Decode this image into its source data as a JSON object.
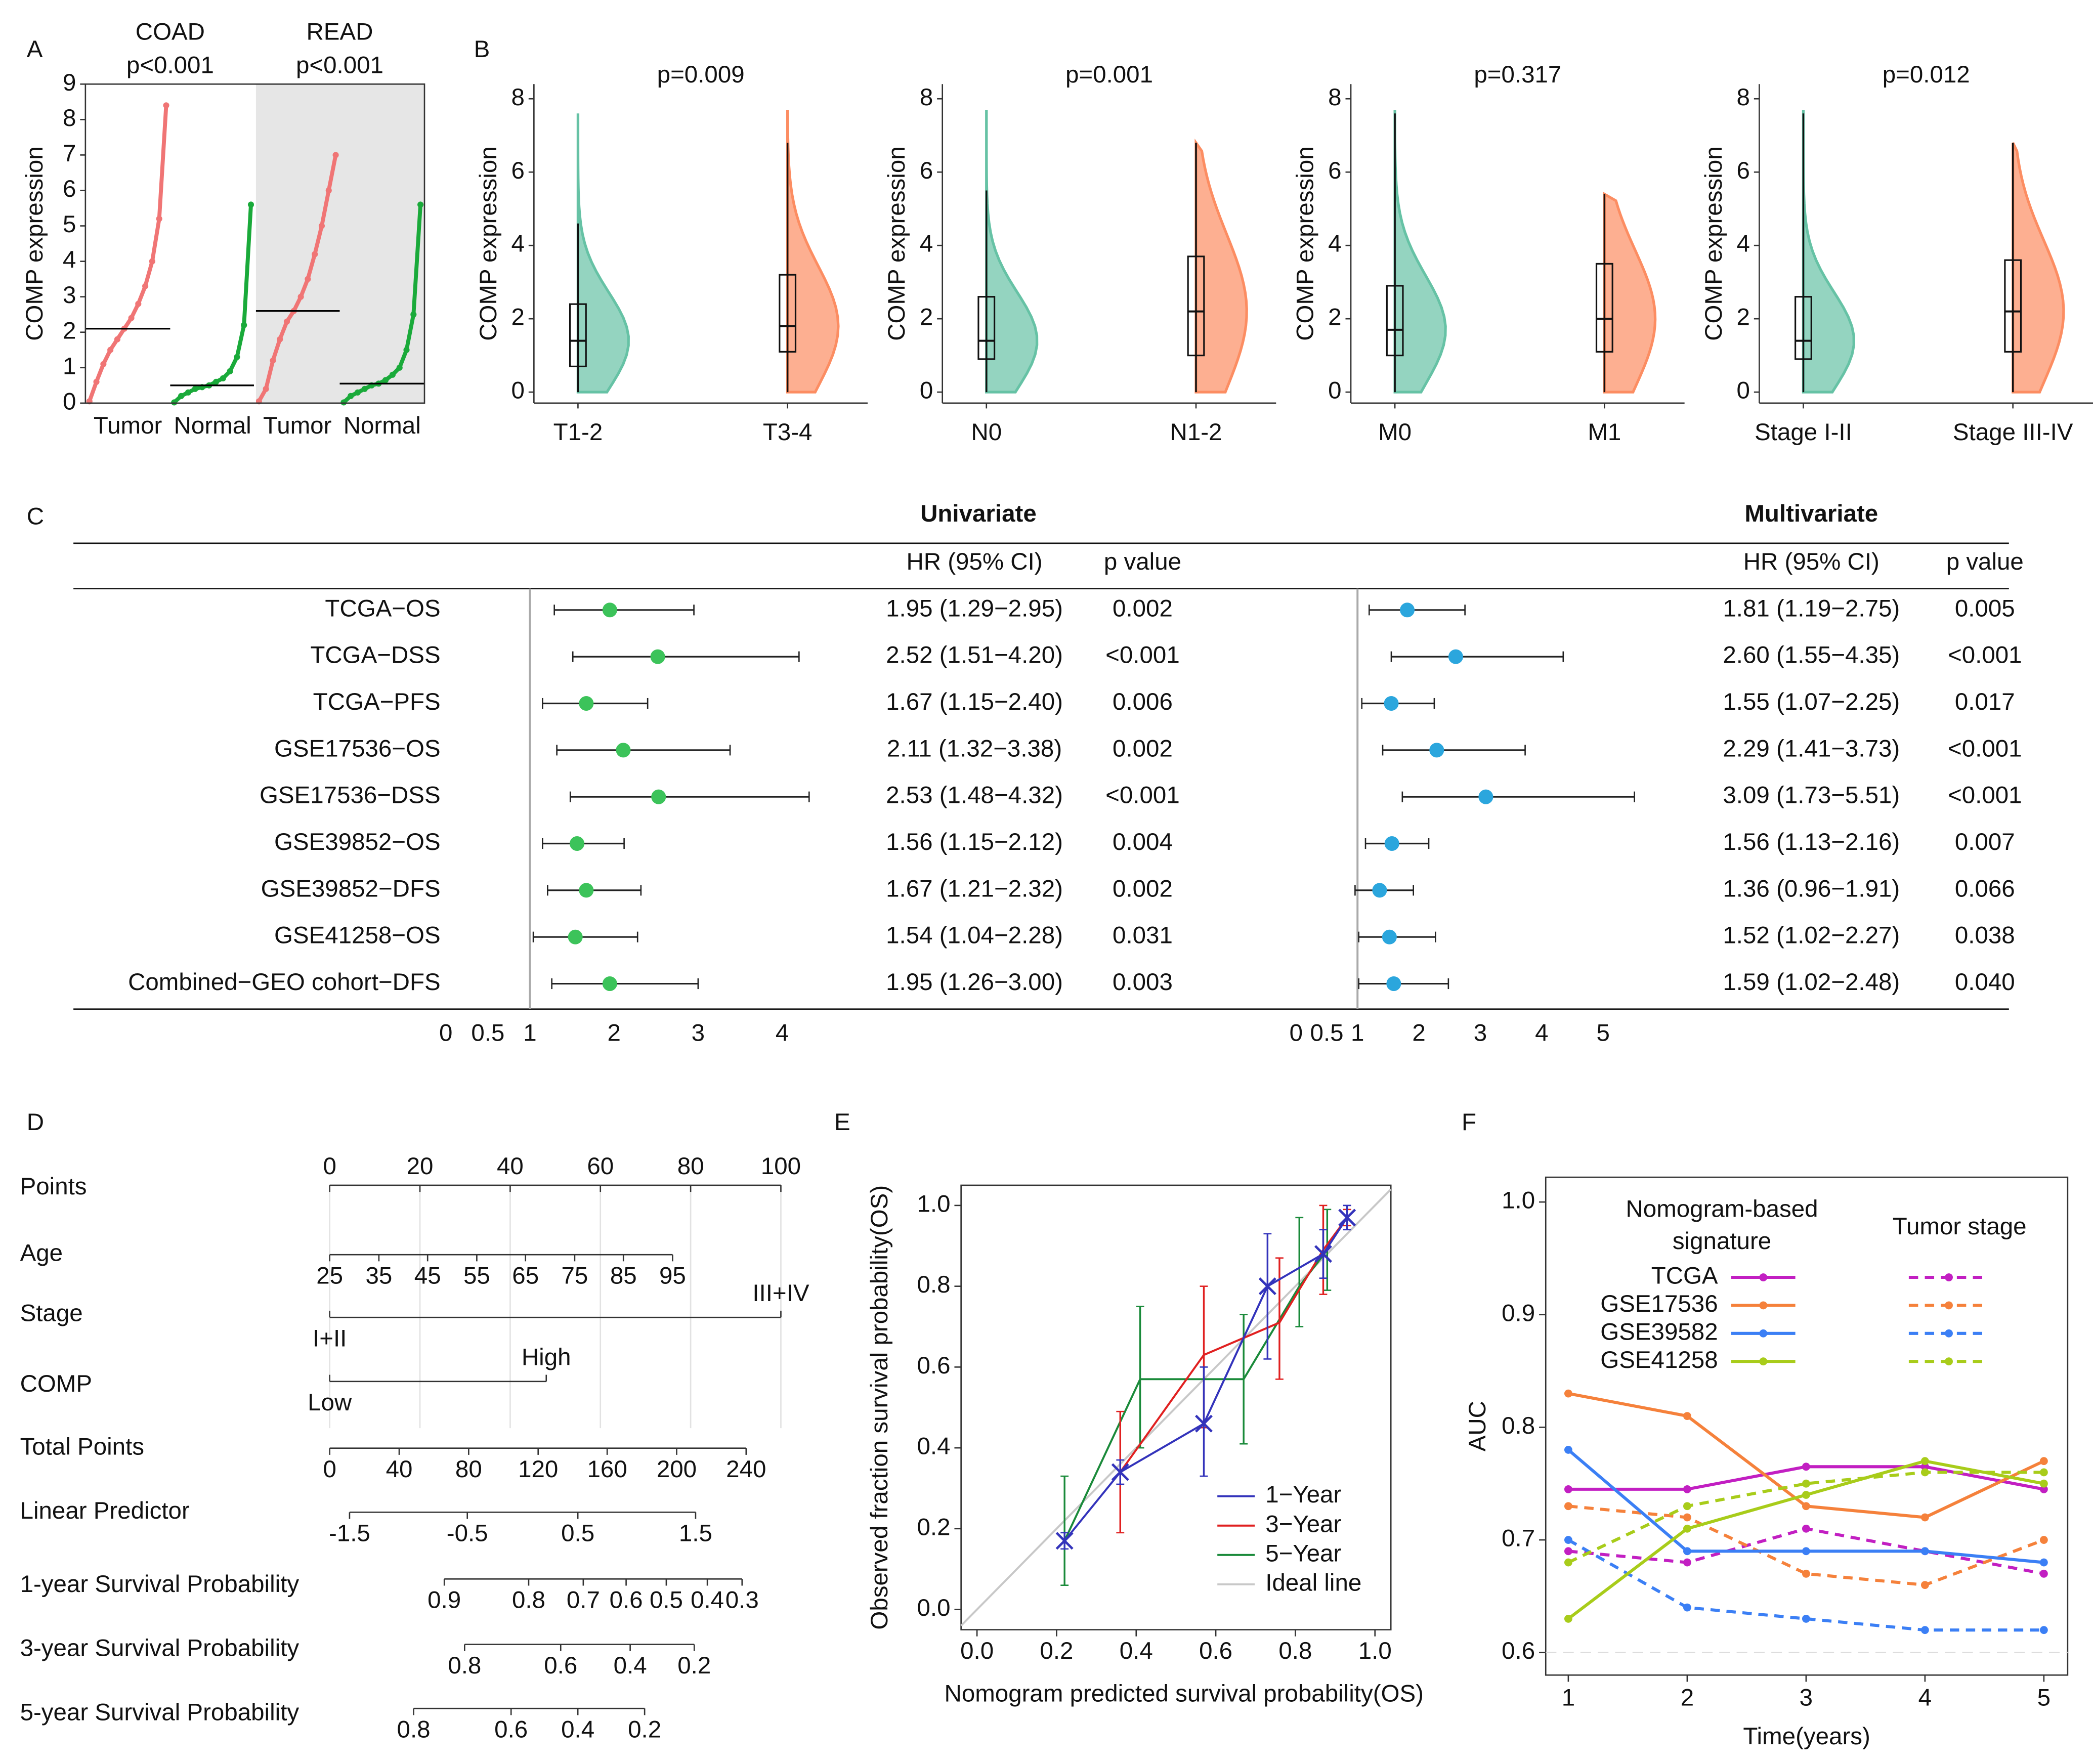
{
  "chart_data": [
    {
      "type": "strip",
      "panel": "A",
      "ylabel": "COMP expression",
      "ylim": [
        0,
        9
      ],
      "yticks": [
        0,
        1,
        2,
        3,
        4,
        5,
        6,
        7,
        8,
        9
      ],
      "groups": [
        {
          "title": "COAD",
          "subtitle": "p<0.001",
          "shaded": false,
          "series": [
            {
              "name": "Tumor",
              "color": "#f07575",
              "values": [
                0.05,
                0.6,
                1.1,
                1.5,
                1.8,
                2.1,
                2.4,
                2.8,
                3.3,
                4.0,
                5.2,
                8.4
              ],
              "median": 2.1
            },
            {
              "name": "Normal",
              "color": "#1aaa3a",
              "values": [
                0.02,
                0.2,
                0.3,
                0.4,
                0.45,
                0.5,
                0.6,
                0.7,
                0.9,
                1.3,
                2.2,
                5.6
              ],
              "median": 0.5
            }
          ]
        },
        {
          "title": "READ",
          "subtitle": "p<0.001",
          "shaded": true,
          "series": [
            {
              "name": "Tumor",
              "color": "#f07575",
              "values": [
                0.05,
                0.4,
                1.2,
                1.8,
                2.3,
                2.6,
                3.0,
                3.5,
                4.2,
                5.0,
                6.0,
                7.0
              ],
              "median": 2.6
            },
            {
              "name": "Normal",
              "color": "#1aaa3a",
              "values": [
                0.02,
                0.2,
                0.3,
                0.4,
                0.5,
                0.55,
                0.65,
                0.8,
                1.0,
                1.5,
                2.5,
                5.6
              ],
              "median": 0.55
            }
          ]
        }
      ]
    },
    {
      "type": "violin",
      "panel": "B",
      "title": "p=0.009",
      "ylabel": "COMP expression",
      "ylim": [
        -0.3,
        8.4
      ],
      "yticks": [
        0,
        2,
        4,
        6,
        8
      ],
      "categories": [
        "T1-2",
        "T3-4"
      ],
      "colors": [
        "#66c2a5",
        "#fc8d62"
      ],
      "boxes": [
        {
          "min": 0,
          "q1": 0.7,
          "median": 1.4,
          "q3": 2.4,
          "max": 4.6,
          "extent": [
            0,
            7.6
          ]
        },
        {
          "min": 0,
          "q1": 1.1,
          "median": 1.8,
          "q3": 3.2,
          "max": 6.8,
          "extent": [
            0,
            7.7
          ]
        }
      ]
    },
    {
      "type": "violin",
      "title": "p=0.001",
      "ylabel": "COMP expression",
      "ylim": [
        -0.3,
        8.4
      ],
      "yticks": [
        0,
        2,
        4,
        6,
        8
      ],
      "categories": [
        "N0",
        "N1-2"
      ],
      "colors": [
        "#66c2a5",
        "#fc8d62"
      ],
      "boxes": [
        {
          "min": 0,
          "q1": 0.9,
          "median": 1.4,
          "q3": 2.6,
          "max": 5.5,
          "extent": [
            0,
            7.7
          ]
        },
        {
          "min": 0,
          "q1": 1.0,
          "median": 2.2,
          "q3": 3.7,
          "max": 6.8,
          "extent": [
            0,
            6.8
          ]
        }
      ]
    },
    {
      "type": "violin",
      "title": "p=0.317",
      "ylabel": "COMP expression",
      "ylim": [
        -0.3,
        8.4
      ],
      "yticks": [
        0,
        2,
        4,
        6,
        8
      ],
      "categories": [
        "M0",
        "M1"
      ],
      "colors": [
        "#66c2a5",
        "#fc8d62"
      ],
      "boxes": [
        {
          "min": 0,
          "q1": 1.0,
          "median": 1.7,
          "q3": 2.9,
          "max": 7.6,
          "extent": [
            0,
            7.7
          ]
        },
        {
          "min": 0,
          "q1": 1.1,
          "median": 2.0,
          "q3": 3.5,
          "max": 5.4,
          "extent": [
            0,
            5.4
          ]
        }
      ]
    },
    {
      "type": "violin",
      "title": "p=0.012",
      "ylabel": "COMP expression",
      "ylim": [
        -0.3,
        8.4
      ],
      "yticks": [
        0,
        2,
        4,
        6,
        8
      ],
      "categories": [
        "Stage I-II",
        "Stage III-IV"
      ],
      "colors": [
        "#66c2a5",
        "#fc8d62"
      ],
      "boxes": [
        {
          "min": 0,
          "q1": 0.9,
          "median": 1.4,
          "q3": 2.6,
          "max": 7.6,
          "extent": [
            0,
            7.7
          ]
        },
        {
          "min": 0,
          "q1": 1.1,
          "median": 2.2,
          "q3": 3.6,
          "max": 6.8,
          "extent": [
            0,
            6.8
          ]
        }
      ]
    },
    {
      "type": "forest",
      "panel": "C",
      "headers": {
        "hr": "HR (95% CI)",
        "p": "p value"
      },
      "categories": [
        "TCGA−OS",
        "TCGA−DSS",
        "TCGA−PFS",
        "GSE17536−OS",
        "GSE17536−DSS",
        "GSE39852−OS",
        "GSE39852−DFS",
        "GSE41258−OS",
        "Combined−GEO cohort−DFS"
      ],
      "panels": [
        {
          "title": "Univariate",
          "color": "#3cc35a",
          "ref": 1,
          "xlim": [
            0,
            4
          ],
          "xticks": [
            0,
            0.5,
            1,
            2,
            3,
            4
          ],
          "values": [
            1.95,
            2.52,
            1.67,
            2.11,
            2.53,
            1.56,
            1.67,
            1.54,
            1.95
          ],
          "lower": [
            1.29,
            1.51,
            1.15,
            1.32,
            1.48,
            1.15,
            1.21,
            1.04,
            1.26
          ],
          "upper": [
            2.95,
            4.2,
            2.4,
            3.38,
            4.32,
            2.12,
            2.32,
            2.28,
            3.0
          ],
          "value_labels": [
            "1.95 (1.29−2.95)",
            "2.52 (1.51−4.20)",
            "1.67 (1.15−2.40)",
            "2.11 (1.32−3.38)",
            "2.53 (1.48−4.32)",
            "1.56 (1.15−2.12)",
            "1.67 (1.21−2.32)",
            "1.54 (1.04−2.28)",
            "1.95 (1.26−3.00)"
          ],
          "p_values": [
            "0.002",
            "<0.001",
            "0.006",
            "0.002",
            "<0.001",
            "0.004",
            "0.002",
            "0.031",
            "0.003"
          ]
        },
        {
          "title": "Multivariate",
          "color": "#2ba6dd",
          "ref": 1,
          "xlim": [
            0,
            5
          ],
          "xticks": [
            0,
            0.5,
            1,
            2,
            3,
            4,
            5
          ],
          "values": [
            1.81,
            2.6,
            1.55,
            2.29,
            3.09,
            1.56,
            1.36,
            1.52,
            1.59
          ],
          "lower": [
            1.19,
            1.55,
            1.07,
            1.41,
            1.73,
            1.13,
            0.96,
            1.02,
            1.02
          ],
          "upper": [
            2.75,
            4.35,
            2.25,
            3.73,
            5.51,
            2.16,
            1.91,
            2.27,
            2.48
          ],
          "value_labels": [
            "1.81 (1.19−2.75)",
            "2.60 (1.55−4.35)",
            "1.55 (1.07−2.25)",
            "2.29 (1.41−3.73)",
            "3.09 (1.73−5.51)",
            "1.56 (1.13−2.16)",
            "1.36 (0.96−1.91)",
            "1.52 (1.02−2.27)",
            "1.59 (1.02−2.48)"
          ],
          "p_values": [
            "0.005",
            "<0.001",
            "0.017",
            "<0.001",
            "<0.001",
            "0.007",
            "0.066",
            "0.038",
            "0.040"
          ]
        }
      ]
    },
    {
      "type": "nomogram",
      "panel": "D",
      "xlim": [
        0,
        100
      ],
      "grid": true,
      "rows": [
        {
          "label": "Points",
          "ticks": [
            0,
            20,
            40,
            60,
            80,
            100
          ],
          "points": [
            0,
            20,
            40,
            60,
            80,
            100
          ]
        },
        {
          "label": "Age",
          "ticks": [
            25,
            35,
            45,
            55,
            65,
            75,
            85,
            95
          ],
          "points": [
            0,
            10.9,
            21.7,
            32.6,
            43.4,
            54.3,
            65.1,
            76
          ]
        },
        {
          "label": "Stage",
          "ticks": [
            "I+II",
            "III+IV"
          ],
          "points": [
            0,
            100
          ]
        },
        {
          "label": "COMP",
          "ticks": [
            "Low",
            "High"
          ],
          "points": [
            0,
            48
          ]
        },
        {
          "label": "Total Points",
          "ticks": [
            0,
            40,
            80,
            120,
            160,
            200,
            240
          ],
          "points": [
            0,
            15.4,
            30.8,
            46.2,
            61.5,
            76.9,
            92.3
          ]
        },
        {
          "label": "Linear Predictor",
          "ticks": [
            -1.5,
            -0.5,
            0.5,
            1.5
          ],
          "points": [
            4.4,
            30.5,
            55.0,
            81.1
          ]
        },
        {
          "label": "1-year Survival Probability",
          "ticks": [
            0.9,
            0.8,
            0.7,
            0.6,
            0.5,
            0.4,
            0.3
          ],
          "points": [
            25.4,
            44.1,
            56.2,
            65.7,
            74.6,
            83.7,
            91.4
          ]
        },
        {
          "label": "3-year Survival Probability",
          "ticks": [
            0.8,
            0.6,
            0.4,
            0.2
          ],
          "points": [
            29.9,
            51.2,
            66.6,
            80.8
          ]
        },
        {
          "label": "5-year Survival Probability",
          "ticks": [
            0.8,
            0.6,
            0.4,
            0.2
          ],
          "points": [
            18.6,
            40.2,
            55.0,
            69.8
          ]
        }
      ]
    },
    {
      "type": "calibration",
      "panel": "E",
      "xlabel": "Nomogram predicted survival probability(OS)",
      "ylabel": "Observed fraction survival probability(OS)",
      "xlim": [
        -0.04,
        1.04
      ],
      "ylim": [
        -0.05,
        1.05
      ],
      "xticks": [
        {
          "value": 0,
          "label": "0.0"
        },
        0.2,
        0.4,
        0.6,
        0.8,
        {
          "value": 1,
          "label": "1.0"
        }
      ],
      "yticks": [
        {
          "value": 0,
          "label": "0.0"
        },
        0.2,
        0.4,
        0.6,
        0.8,
        {
          "value": 1,
          "label": "1.0"
        }
      ],
      "legend": "bottom-right",
      "series": [
        {
          "name": "1−Year",
          "color": "#3333bb",
          "marker": "x",
          "x": [
            0.22,
            0.36,
            0.57,
            0.73,
            0.87,
            0.93
          ],
          "values": [
            0.17,
            0.34,
            0.46,
            0.8,
            0.88,
            0.97
          ],
          "lower": [
            0.15,
            0.31,
            0.33,
            0.62,
            0.82,
            0.94
          ],
          "upper": [
            0.19,
            0.37,
            0.6,
            0.93,
            0.94,
            1.0
          ]
        },
        {
          "name": "3−Year",
          "color": "#e02020",
          "x": [
            0.36,
            0.57,
            0.76,
            0.87,
            0.93
          ],
          "values": [
            0.34,
            0.63,
            0.71,
            0.89,
            0.97
          ],
          "lower": [
            0.19,
            0.45,
            0.57,
            0.78,
            0.95
          ],
          "upper": [
            0.49,
            0.8,
            0.87,
            1.0,
            0.99
          ]
        },
        {
          "name": "5−Year",
          "color": "#1a8a3a",
          "x": [
            0.22,
            0.41,
            0.67,
            0.81,
            0.88
          ],
          "values": [
            0.17,
            0.57,
            0.57,
            0.8,
            0.89
          ],
          "lower": [
            0.06,
            0.4,
            0.41,
            0.7,
            0.79
          ],
          "upper": [
            0.33,
            0.75,
            0.73,
            0.97,
            0.99
          ]
        },
        {
          "name": "Ideal line",
          "color": "#c8c8c8",
          "x": [
            -0.04,
            1.04
          ],
          "values": [
            -0.04,
            1.04
          ]
        }
      ]
    },
    {
      "type": "line",
      "panel": "F",
      "xlabel": "Time(years)",
      "ylabel": "AUC",
      "x": [
        1,
        2,
        3,
        4,
        5
      ],
      "xlim": [
        0.81,
        5.2
      ],
      "xticks": [
        1,
        2,
        3,
        4,
        5
      ],
      "ylim": [
        0.58,
        1.022
      ],
      "yticks": [
        0.6,
        0.7,
        0.8,
        0.9,
        {
          "value": 1,
          "label": "1.0"
        }
      ],
      "hline": 0.6,
      "legend_titles": [
        [
          "Nomogram-based",
          "signature"
        ],
        [
          "Tumor stage"
        ]
      ],
      "series": [
        {
          "name": "TCGA",
          "color": "#c21fc2",
          "values": [
            0.745,
            0.745,
            0.765,
            0.765,
            0.745
          ],
          "stage_values": [
            0.69,
            0.68,
            0.71,
            0.69,
            0.67
          ]
        },
        {
          "name": "GSE17536",
          "color": "#f5813b",
          "values": [
            0.83,
            0.81,
            0.73,
            0.72,
            0.77
          ],
          "stage_values": [
            0.73,
            0.72,
            0.67,
            0.66,
            0.7
          ]
        },
        {
          "name": "GSE39582",
          "color": "#3b7ff5",
          "values": [
            0.78,
            0.69,
            0.69,
            0.69,
            0.68
          ],
          "stage_values": [
            0.7,
            0.64,
            0.63,
            0.62,
            0.62
          ]
        },
        {
          "name": "GSE41258",
          "color": "#a8cc1a",
          "values": [
            0.63,
            0.71,
            0.74,
            0.77,
            0.75
          ],
          "stage_values": [
            0.68,
            0.73,
            0.75,
            0.76,
            0.76
          ]
        }
      ]
    }
  ]
}
